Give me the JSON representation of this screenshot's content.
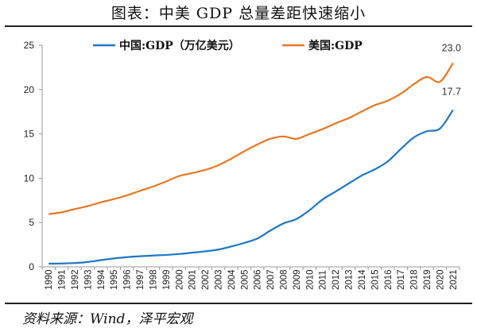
{
  "title": "图表：中美 GDP 总量差距快速缩小",
  "source": "资料来源：Wind，泽平宏观",
  "chart_data": {
    "type": "line",
    "x": [
      1990,
      1991,
      1992,
      1993,
      1994,
      1995,
      1996,
      1997,
      1998,
      1999,
      2000,
      2001,
      2002,
      2003,
      2004,
      2005,
      2006,
      2007,
      2008,
      2009,
      2010,
      2011,
      2012,
      2013,
      2014,
      2015,
      2016,
      2017,
      2018,
      2019,
      2020,
      2021
    ],
    "ylim": [
      0,
      25
    ],
    "yticks": [
      0,
      5,
      10,
      15,
      20,
      25
    ],
    "grid": false,
    "legend": "top",
    "series": [
      {
        "name": "中国:GDP（万亿美元）",
        "color": "#1f77c4",
        "end_label": "17.7",
        "values": [
          0.36,
          0.38,
          0.43,
          0.55,
          0.76,
          0.95,
          1.1,
          1.2,
          1.28,
          1.35,
          1.45,
          1.6,
          1.75,
          1.95,
          2.3,
          2.7,
          3.2,
          4.1,
          4.9,
          5.4,
          6.4,
          7.6,
          8.5,
          9.4,
          10.3,
          11.0,
          11.9,
          13.3,
          14.6,
          15.3,
          15.6,
          17.7
        ]
      },
      {
        "name": "美国:GDP",
        "color": "#e87722",
        "end_label": "23.0",
        "values": [
          5.96,
          6.16,
          6.52,
          6.86,
          7.29,
          7.64,
          8.07,
          8.58,
          9.06,
          9.63,
          10.25,
          10.58,
          10.94,
          11.46,
          12.21,
          13.04,
          13.81,
          14.45,
          14.71,
          14.45,
          14.99,
          15.54,
          16.2,
          16.78,
          17.53,
          18.24,
          18.75,
          19.54,
          20.61,
          21.43,
          20.89,
          23.0
        ]
      }
    ]
  }
}
